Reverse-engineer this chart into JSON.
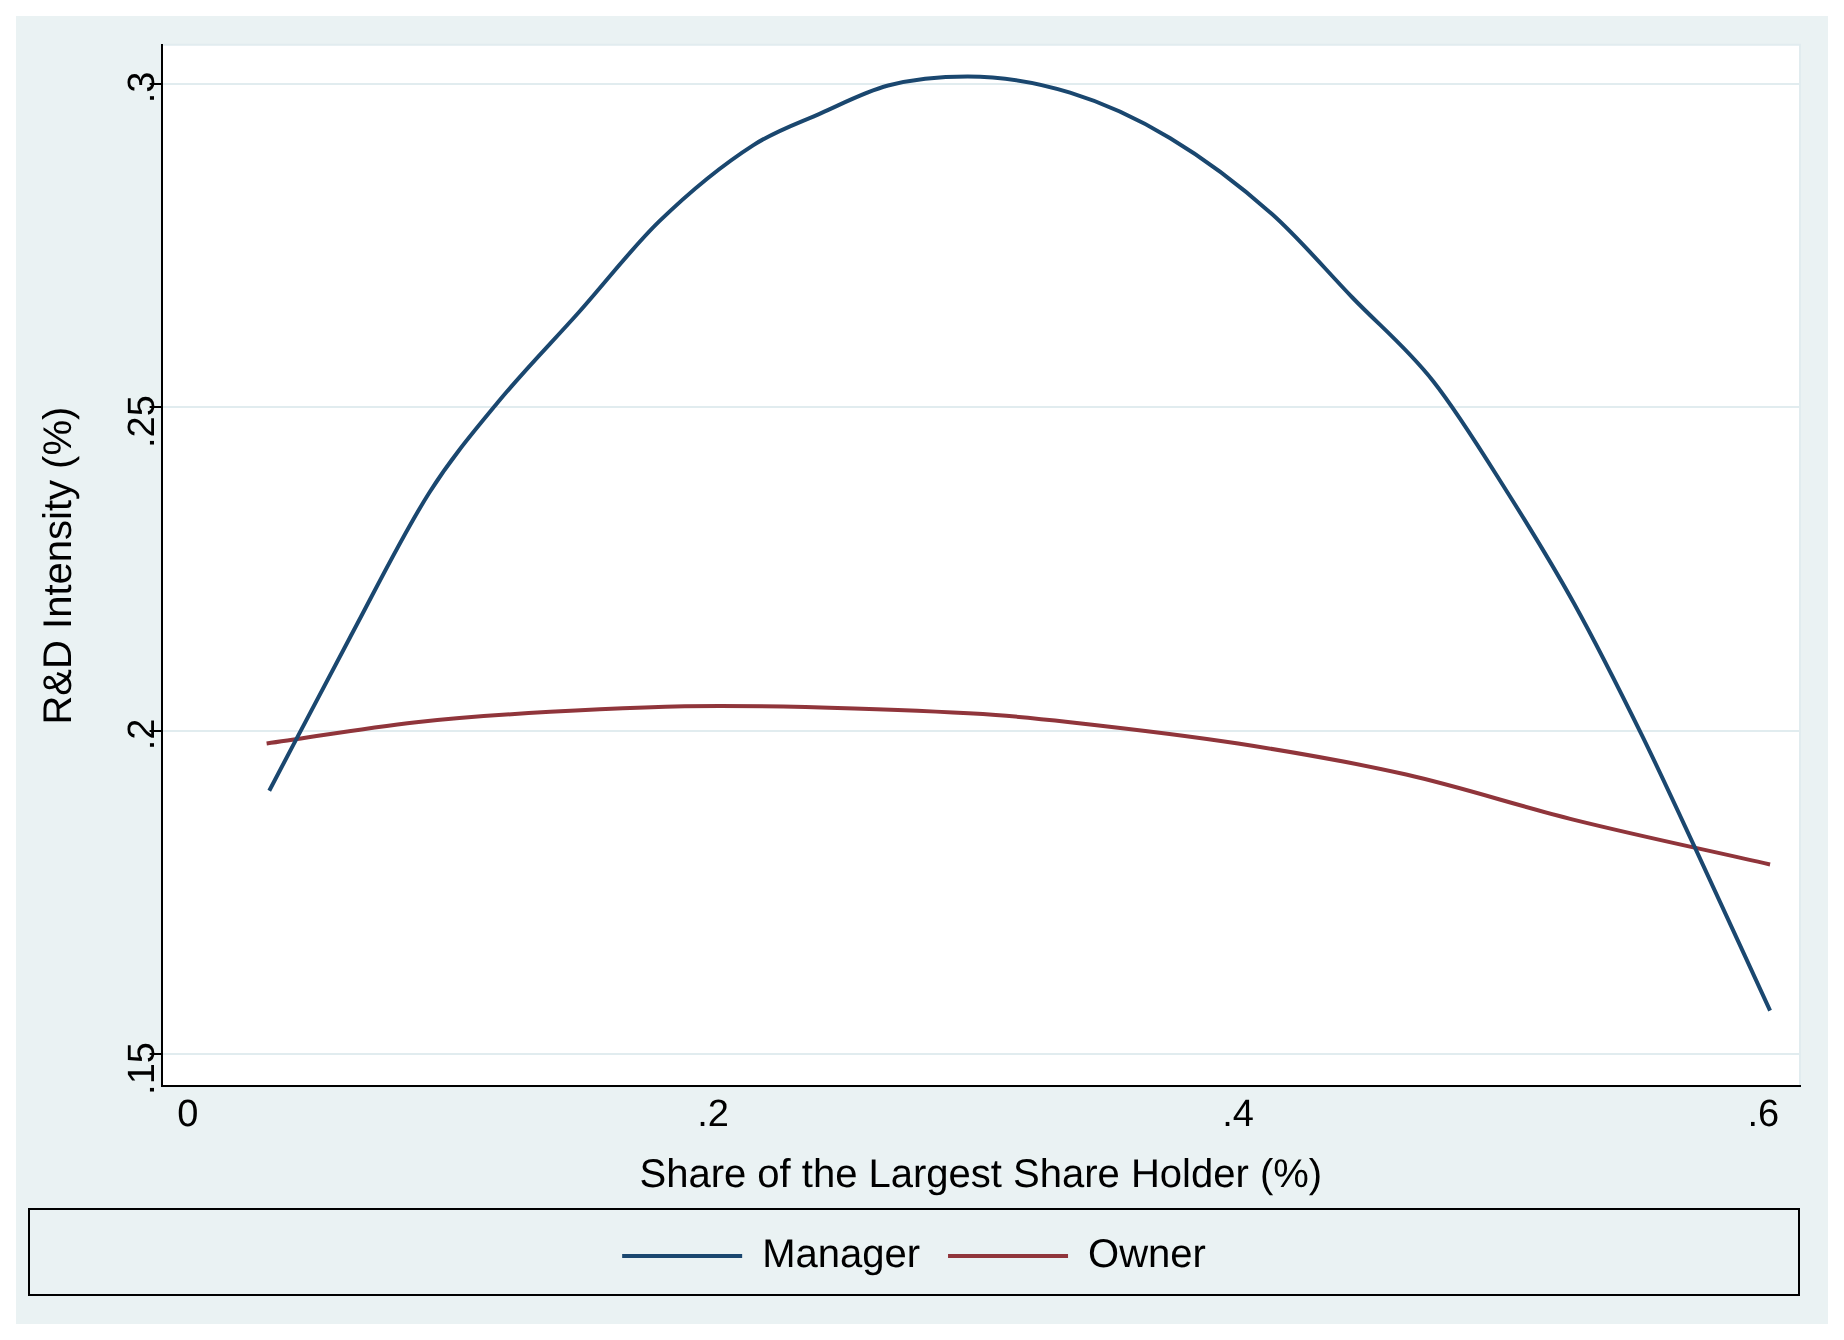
{
  "chart_data": {
    "type": "line",
    "xlabel": "Share of the Largest Share Holder (%)",
    "ylabel": "R&D Intensity (%)",
    "xlim": [
      -0.01,
      0.614
    ],
    "ylim": [
      0.145,
      0.306
    ],
    "xticks": [
      0,
      {
        "value": 0.2,
        "label": ".2"
      },
      {
        "value": 0.4,
        "label": ".4"
      },
      {
        "value": 0.6,
        "label": ".6"
      }
    ],
    "yticks": [
      {
        "value": 0.15,
        "label": ".15"
      },
      {
        "value": 0.2,
        "label": ".2"
      },
      {
        "value": 0.25,
        "label": ".25"
      },
      {
        "value": 0.3,
        "label": ".3"
      }
    ],
    "grid": "y",
    "legend": "bottom",
    "marker": "none",
    "line_style": "solid",
    "series": [
      {
        "name": "Manager",
        "color": "#1a476f",
        "x": [
          0.031,
          0.0615,
          0.092,
          0.118,
          0.149,
          0.1795,
          0.2154,
          0.241,
          0.2667,
          0.297,
          0.336,
          0.374,
          0.413,
          0.4436,
          0.4743,
          0.5026,
          0.528,
          0.554,
          0.574,
          0.6026
        ],
        "values": [
          0.1907,
          0.2142,
          0.2368,
          0.2507,
          0.2647,
          0.2787,
          0.2905,
          0.2954,
          0.2997,
          0.3011,
          0.2986,
          0.2916,
          0.2798,
          0.2669,
          0.254,
          0.2368,
          0.2196,
          0.1991,
          0.1819,
          0.1567
        ]
      },
      {
        "name": "Owner",
        "color": "#90353b",
        "x": [
          0.03,
          0.087,
          0.138,
          0.2026,
          0.2538,
          0.3077,
          0.336,
          0.4,
          0.464,
          0.528,
          0.6026
        ],
        "values": [
          0.198,
          0.2013,
          0.2029,
          0.2038,
          0.2034,
          0.2024,
          0.2013,
          0.198,
          0.1932,
          0.1862,
          0.1793
        ]
      }
    ]
  }
}
